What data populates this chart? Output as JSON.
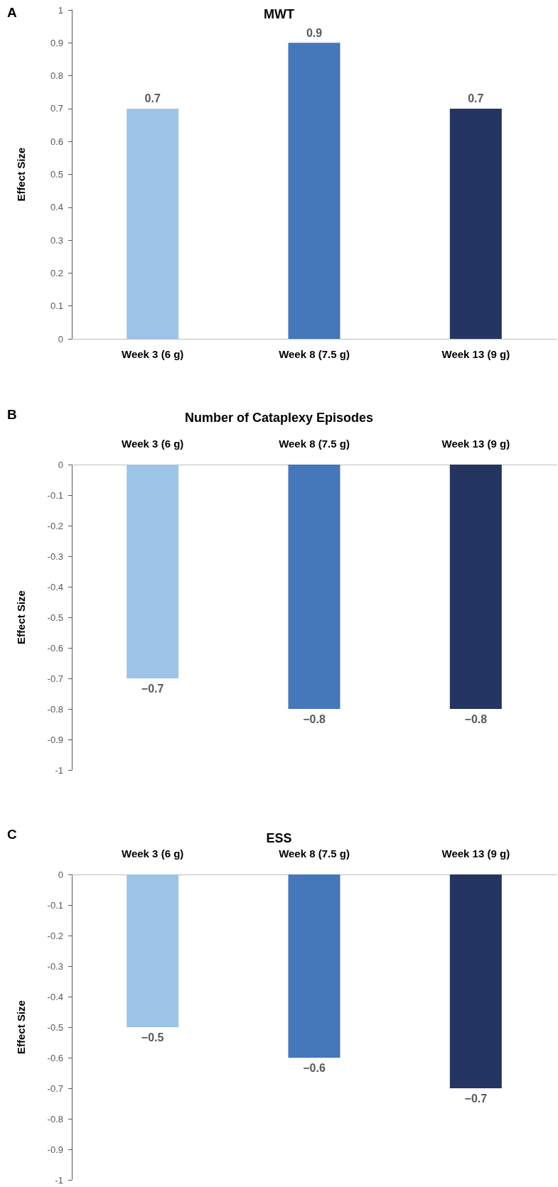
{
  "chart_data": [
    {
      "type": "bar",
      "title": "MWT",
      "ylabel": "Effect Size",
      "annotations": [
        "A"
      ],
      "categories": [
        "Week 3 (6 g)",
        "Week 8 (7.5 g)",
        "Week 13 (9 g)"
      ],
      "values": [
        0.7,
        0.9,
        0.7
      ],
      "colors": [
        "#9dc3e6",
        "#4577bb",
        "#253561"
      ],
      "ylim": [
        0,
        1
      ],
      "yticks": [
        0,
        0.1,
        0.2,
        0.3,
        0.4,
        0.5,
        0.6,
        0.7,
        0.8,
        0.9,
        1
      ],
      "grid": false,
      "data_labels": true
    },
    {
      "type": "bar",
      "title": "Number of Cataplexy Episodes",
      "ylabel": "Effect Size",
      "annotations": [
        "B"
      ],
      "categories": [
        "Week 3 (6 g)",
        "Week 8 (7.5 g)",
        "Week 13 (9 g)"
      ],
      "values": [
        -0.7,
        -0.8,
        -0.8
      ],
      "value_labels": [
        "−0.7",
        "−0.8",
        "−0.8"
      ],
      "colors": [
        "#9dc3e6",
        "#4577bb",
        "#253561"
      ],
      "ylim": [
        -1,
        0
      ],
      "yticks": [
        -1,
        -0.9,
        -0.8,
        -0.7,
        -0.6,
        -0.5,
        -0.4,
        -0.3,
        -0.2,
        -0.1,
        0
      ],
      "grid": false
    },
    {
      "type": "bar",
      "title": "ESS",
      "ylabel": "Effect Size",
      "annotations": [
        "C"
      ],
      "categories": [
        "Week 3 (6 g)",
        "Week 8 (7.5 g)",
        "Week 13 (9 g)"
      ],
      "values": [
        -0.5,
        -0.6,
        -0.7
      ],
      "value_labels": [
        "−0.5",
        "−0.6",
        "−0.7"
      ],
      "colors": [
        "#9dc3e6",
        "#4577bb",
        "#253561"
      ],
      "ylim": [
        -1,
        0
      ],
      "yticks": [
        -1,
        -0.9,
        -0.8,
        -0.7,
        -0.6,
        -0.5,
        -0.4,
        -0.3,
        -0.2,
        -0.1,
        0
      ],
      "grid": false
    }
  ]
}
